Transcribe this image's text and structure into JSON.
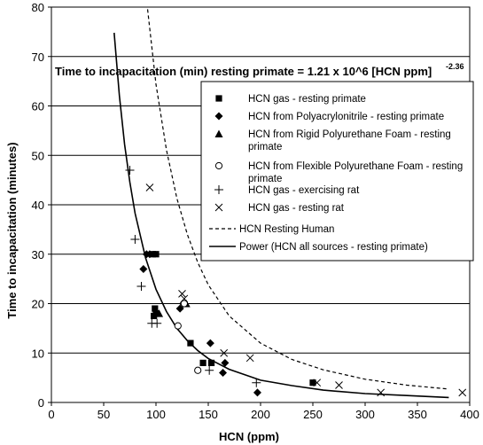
{
  "chart_data": {
    "type": "scatter",
    "xlabel": "HCN (ppm)",
    "ylabel": "Time to incapacitation (minutes)",
    "xlim": [
      0,
      400
    ],
    "ylim": [
      0,
      80
    ],
    "x_ticks": [
      "0",
      "50",
      "100",
      "150",
      "200",
      "250",
      "300",
      "350",
      "400"
    ],
    "y_ticks": [
      "0",
      "10",
      "20",
      "30",
      "40",
      "50",
      "60",
      "70",
      "80"
    ],
    "grid": "horizontal major gridlines",
    "legend_position": "inside right",
    "annotation": {
      "main": "Time to incapacitation (min) resting primate  = 1.21 x 10^6 [HCN ppm]",
      "exponent": "-2.36"
    },
    "series": [
      {
        "name": "HCN gas - resting primate",
        "marker": "square",
        "points": [
          [
            97,
            30
          ],
          [
            100,
            30
          ],
          [
            99,
            19
          ],
          [
            100,
            18
          ],
          [
            98,
            17.5
          ],
          [
            133,
            12
          ],
          [
            145,
            8
          ],
          [
            153,
            8
          ],
          [
            250,
            4
          ]
        ]
      },
      {
        "name": "HCN from Polyacrylonitrile - resting primate",
        "marker": "diamond",
        "points": [
          [
            88,
            27
          ],
          [
            91,
            30
          ],
          [
            94,
            30
          ],
          [
            123,
            19
          ],
          [
            126,
            20
          ],
          [
            152,
            12
          ],
          [
            164,
            6
          ],
          [
            166,
            8
          ],
          [
            197,
            2
          ]
        ]
      },
      {
        "name": "HCN from Rigid Polyurethane Foam - resting primate",
        "marker": "triangle",
        "points": [
          [
            103,
            18
          ],
          [
            129,
            20
          ]
        ]
      },
      {
        "name": "HCN from Flexible Polyurethane Foam - resting primate",
        "marker": "circle",
        "points": [
          [
            121,
            15.5
          ],
          [
            127,
            20
          ],
          [
            140,
            6.5
          ]
        ]
      },
      {
        "name": "HCN  gas - exercising rat",
        "marker": "plus",
        "points": [
          [
            75,
            47
          ],
          [
            80,
            33
          ],
          [
            86,
            23.5
          ],
          [
            96,
            16
          ],
          [
            101,
            16
          ],
          [
            151,
            6.5
          ],
          [
            196,
            4
          ]
        ]
      },
      {
        "name": "HCN gas - resting rat",
        "marker": "x",
        "points": [
          [
            94,
            43.5
          ],
          [
            125,
            22
          ],
          [
            127,
            21
          ],
          [
            165,
            10
          ],
          [
            190,
            9
          ],
          [
            254,
            4
          ],
          [
            275,
            3.5
          ],
          [
            315,
            2
          ],
          [
            393,
            2
          ]
        ]
      },
      {
        "name": "HCN Resting Human",
        "style": "dashed-line",
        "points": [
          [
            90,
            83.3
          ],
          [
            100,
            64.4
          ],
          [
            110,
            51.1
          ],
          [
            120,
            41.3
          ],
          [
            130,
            34
          ],
          [
            140,
            28.3
          ],
          [
            150,
            23.8
          ],
          [
            170,
            17.5
          ],
          [
            200,
            12
          ],
          [
            230,
            8.7
          ],
          [
            260,
            6.6
          ],
          [
            300,
            4.7
          ],
          [
            340,
            3.5
          ],
          [
            380,
            2.7
          ]
        ]
      },
      {
        "name": "Power (HCN all sources - resting primate)",
        "style": "solid-line",
        "points": [
          [
            60,
            74.8
          ],
          [
            65,
            62.1
          ],
          [
            70,
            52.2
          ],
          [
            75,
            44.6
          ],
          [
            80,
            38.3
          ],
          [
            90,
            29.3
          ],
          [
            100,
            22.9
          ],
          [
            110,
            18.4
          ],
          [
            120,
            15
          ],
          [
            130,
            12.5
          ],
          [
            140,
            10.5
          ],
          [
            150,
            8.9
          ],
          [
            170,
            6.7
          ],
          [
            200,
            4.5
          ],
          [
            230,
            3.4
          ],
          [
            260,
            2.5
          ],
          [
            300,
            1.8
          ],
          [
            340,
            1.4
          ],
          [
            380,
            1
          ]
        ]
      }
    ]
  }
}
